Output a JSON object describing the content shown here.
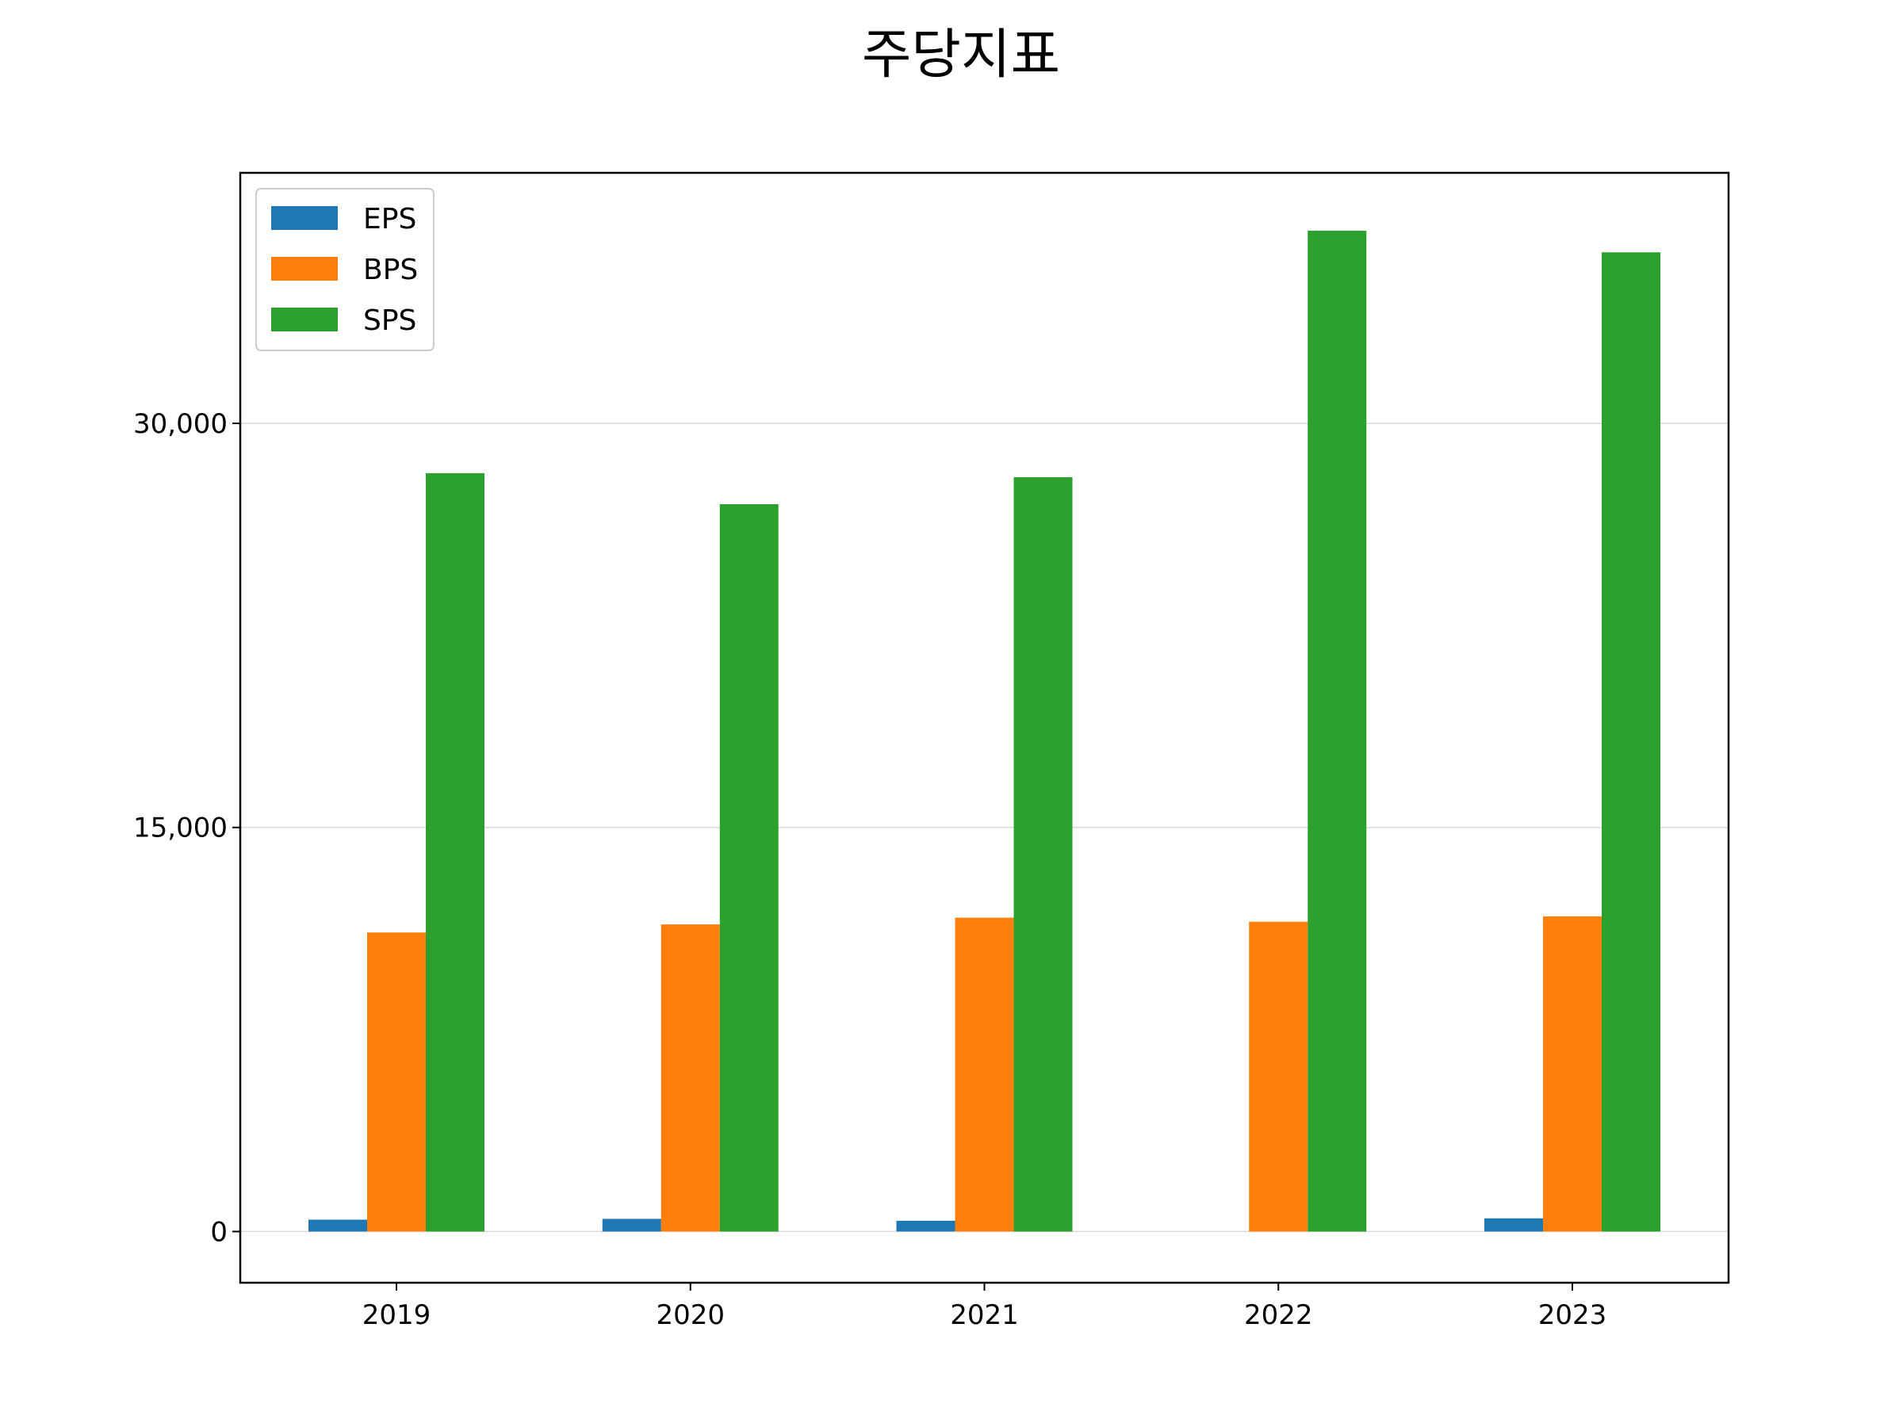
{
  "chart_data": {
    "type": "bar",
    "title": "주당지표",
    "xlabel": "",
    "ylabel": "",
    "categories": [
      "2019",
      "2020",
      "2021",
      "2022",
      "2023"
    ],
    "series": [
      {
        "name": "EPS",
        "color": "#1f77b4",
        "values": [
          440,
          470,
          400,
          0,
          490
        ]
      },
      {
        "name": "BPS",
        "color": "#ff7f0e",
        "values": [
          11100,
          11400,
          11650,
          11500,
          11700
        ]
      },
      {
        "name": "SPS",
        "color": "#2ca02c",
        "values": [
          28150,
          27000,
          28000,
          37150,
          36350
        ]
      }
    ],
    "ylim": [
      -1900,
      39300
    ],
    "yticks": [
      0,
      15000,
      30000
    ],
    "ytick_labels": [
      "0",
      "15,000",
      "30,000"
    ],
    "grid": "horizontal",
    "legend_position": "top-left"
  }
}
